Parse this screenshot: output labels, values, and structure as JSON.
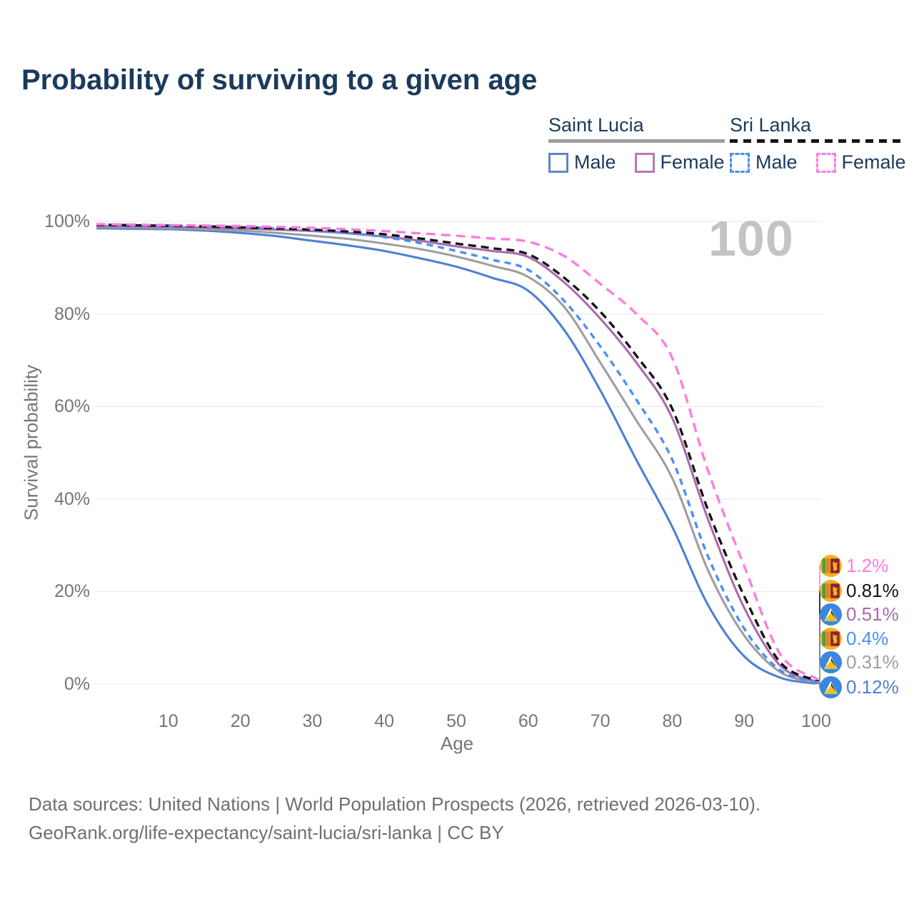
{
  "title": "Probability of surviving to a given age",
  "watermark": "100",
  "legend": {
    "groups": [
      {
        "country": "Saint Lucia",
        "underline_style": "solid",
        "underline_color": "#9e9e9e",
        "items": [
          {
            "label": "Male",
            "color": "#5e86c6",
            "line_style": "solid"
          },
          {
            "label": "Female",
            "color": "#b978b2",
            "line_style": "solid"
          }
        ]
      },
      {
        "country": "Sri Lanka",
        "underline_style": "dashed",
        "underline_color": "#141414",
        "items": [
          {
            "label": "Male",
            "color": "#4a90f2",
            "line_style": "dashed"
          },
          {
            "label": "Female",
            "color": "#ff7ce0",
            "line_style": "dashed"
          }
        ]
      }
    ]
  },
  "chart_data": {
    "type": "line",
    "xlabel": "Age",
    "ylabel": "Survival probability",
    "ylim": [
      0,
      100
    ],
    "xlim": [
      0,
      100
    ],
    "grid": "horizontal-only",
    "x_ticks": [
      {
        "value": 10,
        "label": "10"
      },
      {
        "value": 20,
        "label": "20"
      },
      {
        "value": 30,
        "label": "30"
      },
      {
        "value": 40,
        "label": "40"
      },
      {
        "value": 50,
        "label": "50"
      },
      {
        "value": 60,
        "label": "60"
      },
      {
        "value": 70,
        "label": "70"
      },
      {
        "value": 80,
        "label": "80"
      },
      {
        "value": 90,
        "label": "90"
      },
      {
        "value": 100,
        "label": "100"
      }
    ],
    "y_ticks": [
      {
        "value": 100,
        "label": "100%"
      },
      {
        "value": 80,
        "label": "80%"
      },
      {
        "value": 60,
        "label": "60%"
      },
      {
        "value": 40,
        "label": "40%"
      },
      {
        "value": 20,
        "label": "20%"
      },
      {
        "value": 0,
        "label": "0%"
      }
    ],
    "ages": [
      0,
      5,
      10,
      15,
      20,
      25,
      30,
      35,
      40,
      45,
      50,
      55,
      60,
      65,
      70,
      75,
      80,
      85,
      90,
      95,
      100
    ],
    "series": [
      {
        "name": "Sri Lanka Female",
        "country": "Sri Lanka",
        "flag": "lk",
        "style": "dashed",
        "color": "#ff7ce0",
        "end_label": "1.2%",
        "end_value": 1.2,
        "values": [
          99.4,
          99.3,
          99.2,
          99.1,
          99.0,
          98.8,
          98.6,
          98.3,
          97.9,
          97.4,
          96.9,
          96.3,
          95.6,
          92.5,
          86.5,
          80.0,
          70.5,
          46.0,
          25.5,
          6.5,
          1.2
        ]
      },
      {
        "name": "Sri Lanka Both sexes",
        "country": "Sri Lanka",
        "flag": "lk",
        "style": "dashed",
        "color": "#141414",
        "end_label": "0.81%",
        "end_value": 0.81,
        "values": [
          99.25,
          99.15,
          99.05,
          98.9,
          98.7,
          98.5,
          98.2,
          97.8,
          97.2,
          96.3,
          95.2,
          94.2,
          92.9,
          87.8,
          80.5,
          71.0,
          59.5,
          37.5,
          19.0,
          4.7,
          0.81
        ]
      },
      {
        "name": "Saint Lucia Female",
        "country": "Saint Lucia",
        "flag": "lc",
        "style": "solid",
        "color": "#a96bac",
        "end_label": "0.51%",
        "end_value": 0.51,
        "values": [
          99.0,
          98.9,
          98.8,
          98.65,
          98.45,
          98.2,
          97.9,
          97.4,
          96.7,
          95.8,
          94.6,
          93.6,
          92.3,
          86.8,
          79.0,
          69.5,
          57.5,
          35.5,
          16.5,
          4.0,
          0.51
        ]
      },
      {
        "name": "Sri Lanka Male",
        "country": "Sri Lanka",
        "flag": "lk",
        "style": "dashed",
        "color": "#4a90f2",
        "end_label": "0.4%",
        "end_value": 0.4,
        "values": [
          99.3,
          99.2,
          99.1,
          98.95,
          98.75,
          98.45,
          98.05,
          97.5,
          96.6,
          95.3,
          93.6,
          91.7,
          89.5,
          82.8,
          73.0,
          61.5,
          48.5,
          27.5,
          12.0,
          3.0,
          0.4
        ]
      },
      {
        "name": "Saint Lucia Both sexes",
        "country": "Saint Lucia",
        "flag": "lc",
        "style": "solid",
        "color": "#9e9e9e",
        "end_label": "0.31%",
        "end_value": 0.31,
        "values": [
          98.75,
          98.65,
          98.55,
          98.3,
          98.0,
          97.5,
          96.9,
          96.2,
          95.2,
          94.0,
          92.4,
          90.4,
          88.0,
          81.5,
          69.5,
          57.0,
          44.5,
          24.5,
          10.5,
          2.6,
          0.31
        ]
      },
      {
        "name": "Saint Lucia Male",
        "country": "Saint Lucia",
        "flag": "lc",
        "style": "solid",
        "color": "#4d80d4",
        "end_label": "0.12%",
        "end_value": 0.12,
        "values": [
          98.5,
          98.4,
          98.3,
          98.0,
          97.5,
          96.8,
          95.8,
          94.8,
          93.6,
          92.0,
          90.2,
          87.8,
          85.0,
          76.5,
          63.5,
          48.5,
          34.0,
          17.0,
          6.0,
          1.4,
          0.12
        ]
      }
    ]
  },
  "footer": {
    "line1": "Data sources: United Nations | World Population Prospects (2026, retrieved 2026-03-10).",
    "line2": "GeoRank.org/life-expectancy/saint-lucia/sri-lanka | CC BY"
  }
}
